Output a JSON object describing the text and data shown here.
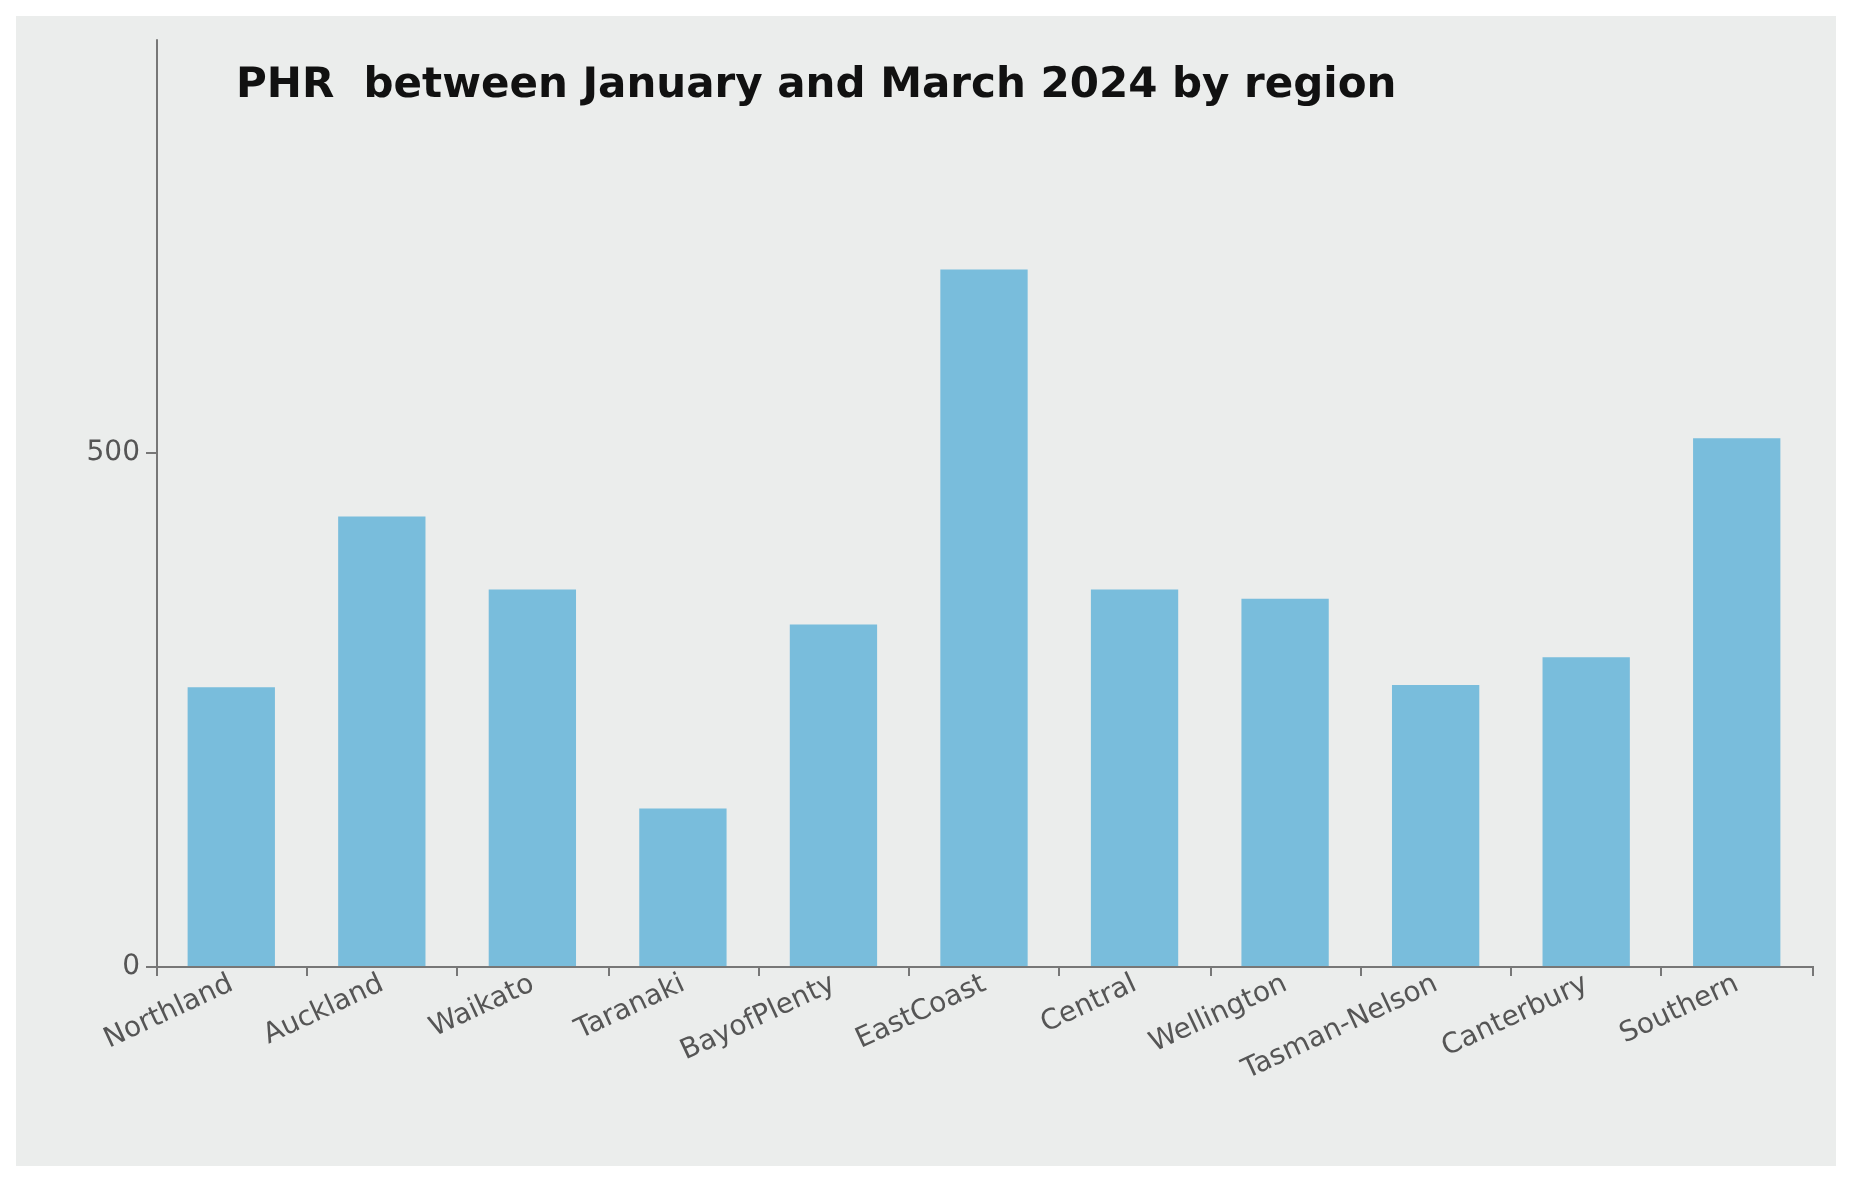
{
  "chart_data": {
    "type": "bar",
    "title": "PHR  between January and March 2024 by region",
    "categories": [
      "Northland",
      "Auckland",
      "Waikato",
      "Taranaki",
      "BayofPlenty",
      "EastCoast",
      "Central",
      "Wellington",
      "Tasman-Nelson",
      "Canterbury",
      "Southern"
    ],
    "values": [
      271,
      437,
      366,
      153,
      332,
      677,
      366,
      357,
      273,
      300,
      513
    ],
    "color": "#79bddc",
    "ylim": [
      0,
      900
    ],
    "yticks": [
      0,
      500
    ],
    "grid": false
  }
}
